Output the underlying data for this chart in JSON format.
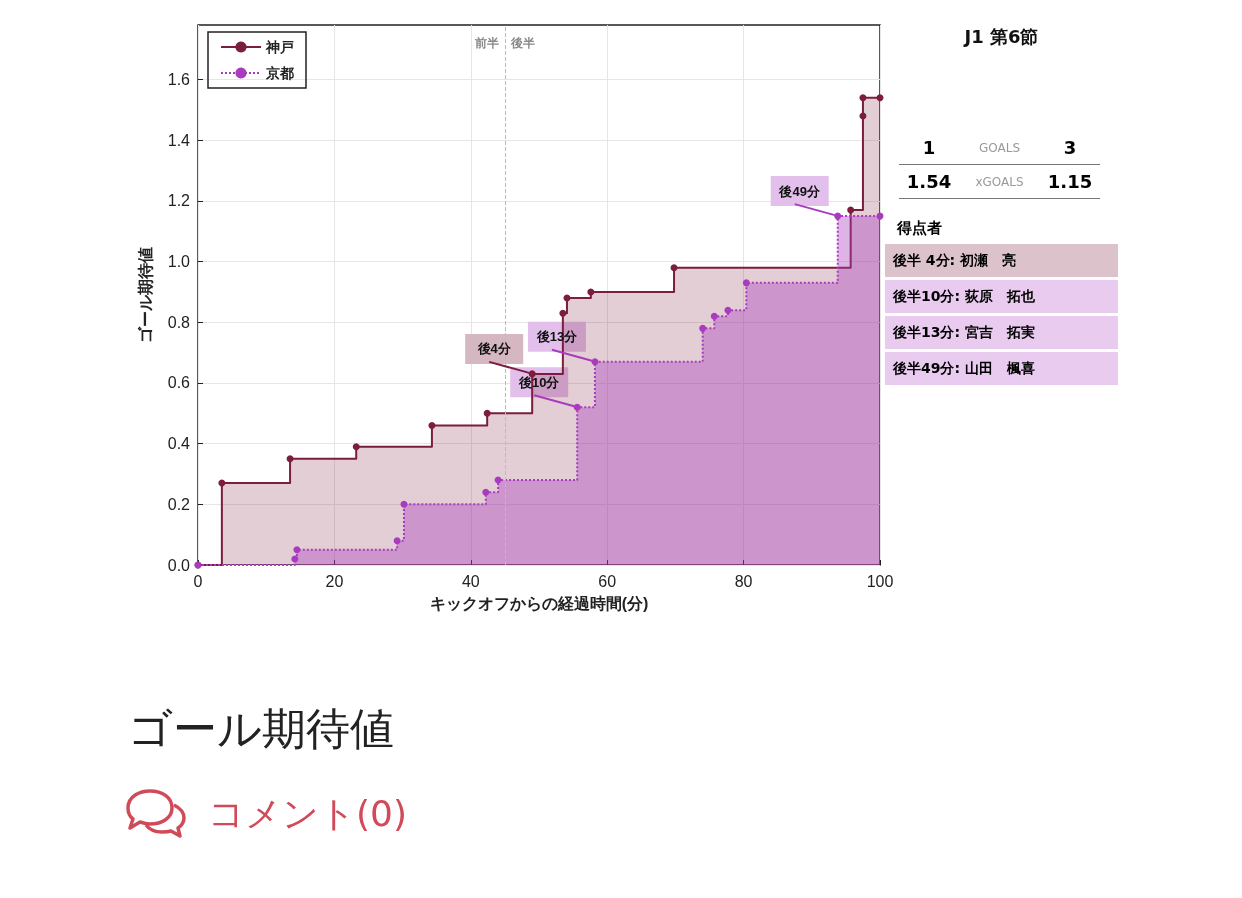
{
  "chart_data": [
    {
      "type": "step",
      "title": "ゴール期待値",
      "xlabel": "キックオフからの経過時間(分)",
      "ylabel": "ゴール期待値",
      "xlim": [
        0,
        100
      ],
      "xticks": [
        0,
        20,
        40,
        60,
        80,
        100
      ],
      "ylim": [
        0,
        1.78
      ],
      "yticks": [
        {
          "value": 0,
          "label": "0.0"
        },
        {
          "value": 0.2,
          "label": "0.2"
        },
        {
          "value": 0.4,
          "label": "0.4"
        },
        {
          "value": 0.6,
          "label": "0.6"
        },
        {
          "value": 0.8,
          "label": "0.8"
        },
        {
          "value": 1,
          "label": "1.0"
        },
        {
          "value": 1.2,
          "label": "1.2"
        },
        {
          "value": 1.4,
          "label": "1.4"
        },
        {
          "value": 1.6,
          "label": "1.6"
        }
      ],
      "grid": true,
      "legend": "top left",
      "marker": "circle",
      "series": [
        {
          "name": "神戸",
          "color": "#7b1e3c",
          "line_style": "solid",
          "x": [
            0,
            3.5,
            13.5,
            23.2,
            34.3,
            42.4,
            49,
            53.5,
            54.1,
            57.6,
            69.8,
            95.7,
            97.5,
            97.5,
            100
          ],
          "values": [
            0,
            0.27,
            0.35,
            0.39,
            0.46,
            0.5,
            0.63,
            0.83,
            0.88,
            0.9,
            0.98,
            1.17,
            1.48,
            1.54,
            1.54
          ]
        },
        {
          "name": "京都",
          "color": "#a93bbf",
          "line_style": "dotted",
          "x": [
            0,
            14.2,
            14.5,
            29.2,
            30.2,
            42.2,
            44,
            55.6,
            58.2,
            74,
            75.7,
            77.7,
            80.4,
            93.8,
            100
          ],
          "values": [
            0,
            0.02,
            0.05,
            0.08,
            0.2,
            0.24,
            0.28,
            0.52,
            0.67,
            0.78,
            0.82,
            0.84,
            0.93,
            1.15,
            1.15
          ]
        }
      ],
      "ref_lines": [
        {
          "axis": "x",
          "value": 45,
          "label": "前半",
          "color": "#bbbbbb",
          "line_style": "dashed"
        }
      ],
      "annotations": [
        "後半",
        "コメント(0)",
        {
          "text": "後4分",
          "x": 49,
          "y": 0.63
        },
        {
          "text": "後10分",
          "x": 55.6,
          "y": 0.52
        },
        {
          "text": "後13分",
          "x": 58.2,
          "y": 0.67
        },
        {
          "text": "後49分",
          "x": 93.8,
          "y": 1.15
        }
      ]
    },
    {
      "type": "other",
      "title": "J1 第6節",
      "annotations": [
        "1",
        "GOALS",
        "3",
        "1.54",
        "xGOALS",
        "1.15",
        "得点者",
        "後半  4分: 初瀬　亮",
        "後半10分: 荻原　拓也",
        "後半13分: 宮吉　拓実",
        "後半49分: 山田　楓喜"
      ]
    }
  ]
}
